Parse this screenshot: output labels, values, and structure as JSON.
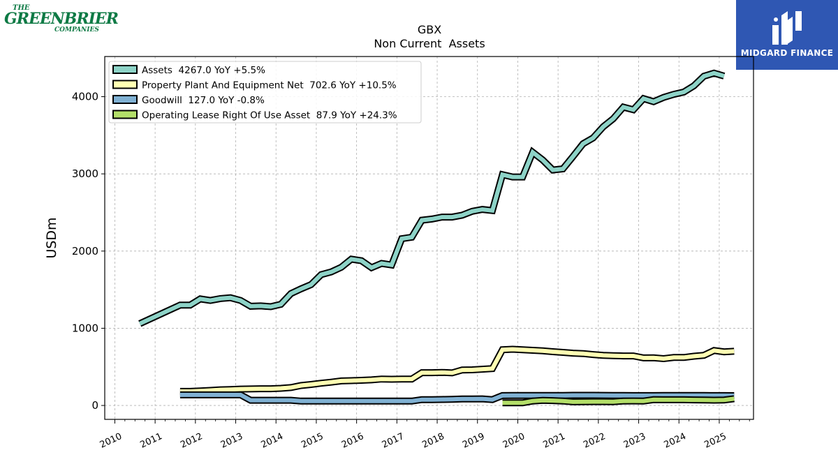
{
  "brand": {
    "company_logo": {
      "line1": "THE",
      "line2": "GREENBRIER",
      "line3": "COMPANIES",
      "color": "#0e7a45"
    },
    "publisher_logo": {
      "text": "MIDGARD FINANCE",
      "background": "#2f57b3",
      "mark": "double-i-icon"
    }
  },
  "chart_data": {
    "type": "line",
    "title": "GBX",
    "subtitle": "Non Current  Assets",
    "xlabel": "",
    "ylabel": "USDm",
    "xlim": [
      2009.75,
      2025.85
    ],
    "ylim": [
      -180,
      4520
    ],
    "xticks": [
      "2010",
      "2011",
      "2012",
      "2013",
      "2014",
      "2015",
      "2016",
      "2017",
      "2018",
      "2019",
      "2020",
      "2021",
      "2022",
      "2023",
      "2024",
      "2025"
    ],
    "yticks": [
      0,
      1000,
      2000,
      3000,
      4000
    ],
    "grid": true,
    "legend_position": "top-left",
    "series": [
      {
        "name": "Assets",
        "legend": "Assets  4267.0 YoY +5.5%",
        "color": "#8dd3c7",
        "points": [
          [
            2010.62,
            1060
          ],
          [
            2011.62,
            1300
          ],
          [
            2011.87,
            1300
          ],
          [
            2012.12,
            1380
          ],
          [
            2012.37,
            1360
          ],
          [
            2012.62,
            1385
          ],
          [
            2012.87,
            1395
          ],
          [
            2013.12,
            1360
          ],
          [
            2013.37,
            1285
          ],
          [
            2013.62,
            1290
          ],
          [
            2013.87,
            1280
          ],
          [
            2014.12,
            1310
          ],
          [
            2014.37,
            1450
          ],
          [
            2014.62,
            1510
          ],
          [
            2014.87,
            1565
          ],
          [
            2015.12,
            1695
          ],
          [
            2015.37,
            1730
          ],
          [
            2015.62,
            1790
          ],
          [
            2015.87,
            1895
          ],
          [
            2016.12,
            1875
          ],
          [
            2016.37,
            1785
          ],
          [
            2016.62,
            1840
          ],
          [
            2016.87,
            1820
          ],
          [
            2017.12,
            2160
          ],
          [
            2017.37,
            2180
          ],
          [
            2017.62,
            2400
          ],
          [
            2017.87,
            2415
          ],
          [
            2018.12,
            2440
          ],
          [
            2018.37,
            2440
          ],
          [
            2018.62,
            2465
          ],
          [
            2018.87,
            2515
          ],
          [
            2019.12,
            2540
          ],
          [
            2019.37,
            2525
          ],
          [
            2019.62,
            2990
          ],
          [
            2019.87,
            2960
          ],
          [
            2020.12,
            2960
          ],
          [
            2020.37,
            3280
          ],
          [
            2020.62,
            3180
          ],
          [
            2020.87,
            3050
          ],
          [
            2021.12,
            3065
          ],
          [
            2021.37,
            3225
          ],
          [
            2021.62,
            3390
          ],
          [
            2021.87,
            3465
          ],
          [
            2022.12,
            3610
          ],
          [
            2022.37,
            3715
          ],
          [
            2022.62,
            3865
          ],
          [
            2022.87,
            3830
          ],
          [
            2023.12,
            3975
          ],
          [
            2023.37,
            3935
          ],
          [
            2023.62,
            3990
          ],
          [
            2023.87,
            4030
          ],
          [
            2024.12,
            4060
          ],
          [
            2024.37,
            4140
          ],
          [
            2024.62,
            4265
          ],
          [
            2024.87,
            4305
          ],
          [
            2025.12,
            4267
          ]
        ]
      },
      {
        "name": "Property Plant And Equipment Net",
        "legend": "Property Plant And Equipment Net  702.6 YoY +10.5%",
        "color": "#ffffb3",
        "points": [
          [
            2011.62,
            182
          ],
          [
            2011.87,
            182
          ],
          [
            2012.12,
            188
          ],
          [
            2012.37,
            195
          ],
          [
            2012.62,
            203
          ],
          [
            2012.87,
            207
          ],
          [
            2013.12,
            212
          ],
          [
            2013.37,
            214
          ],
          [
            2013.62,
            217
          ],
          [
            2013.87,
            217
          ],
          [
            2014.12,
            222
          ],
          [
            2014.37,
            232
          ],
          [
            2014.62,
            258
          ],
          [
            2014.87,
            272
          ],
          [
            2015.12,
            288
          ],
          [
            2015.37,
            302
          ],
          [
            2015.62,
            318
          ],
          [
            2015.87,
            322
          ],
          [
            2016.12,
            326
          ],
          [
            2016.37,
            332
          ],
          [
            2016.62,
            342
          ],
          [
            2016.87,
            340
          ],
          [
            2017.12,
            342
          ],
          [
            2017.37,
            342
          ],
          [
            2017.62,
            425
          ],
          [
            2017.87,
            425
          ],
          [
            2018.12,
            428
          ],
          [
            2018.37,
            422
          ],
          [
            2018.62,
            460
          ],
          [
            2018.87,
            462
          ],
          [
            2019.12,
            470
          ],
          [
            2019.37,
            478
          ],
          [
            2019.62,
            722
          ],
          [
            2019.87,
            728
          ],
          [
            2020.12,
            722
          ],
          [
            2020.37,
            715
          ],
          [
            2020.62,
            708
          ],
          [
            2020.87,
            697
          ],
          [
            2021.12,
            688
          ],
          [
            2021.37,
            678
          ],
          [
            2021.62,
            672
          ],
          [
            2021.87,
            660
          ],
          [
            2022.12,
            650
          ],
          [
            2022.37,
            645
          ],
          [
            2022.62,
            642
          ],
          [
            2022.87,
            642
          ],
          [
            2023.12,
            616
          ],
          [
            2023.37,
            617
          ],
          [
            2023.62,
            606
          ],
          [
            2023.87,
            622
          ],
          [
            2024.12,
            622
          ],
          [
            2024.37,
            638
          ],
          [
            2024.62,
            650
          ],
          [
            2024.87,
            712
          ],
          [
            2025.12,
            695
          ],
          [
            2025.37,
            702.6
          ]
        ]
      },
      {
        "name": "Goodwill",
        "legend": "Goodwill  127.0 YoY -0.8%",
        "color": "#80b1d3",
        "points": [
          [
            2011.62,
            137
          ],
          [
            2011.87,
            137
          ],
          [
            2012.12,
            137
          ],
          [
            2012.37,
            137
          ],
          [
            2012.62,
            137
          ],
          [
            2012.87,
            137
          ],
          [
            2013.12,
            137
          ],
          [
            2013.37,
            68
          ],
          [
            2013.62,
            68
          ],
          [
            2013.87,
            68
          ],
          [
            2014.12,
            68
          ],
          [
            2014.37,
            68
          ],
          [
            2014.62,
            57
          ],
          [
            2014.87,
            57
          ],
          [
            2015.12,
            57
          ],
          [
            2015.37,
            57
          ],
          [
            2015.62,
            57
          ],
          [
            2015.87,
            57
          ],
          [
            2016.12,
            57
          ],
          [
            2016.37,
            57
          ],
          [
            2016.62,
            57
          ],
          [
            2016.87,
            57
          ],
          [
            2017.12,
            57
          ],
          [
            2017.37,
            57
          ],
          [
            2017.62,
            76
          ],
          [
            2017.87,
            76
          ],
          [
            2018.12,
            78
          ],
          [
            2018.37,
            80
          ],
          [
            2018.62,
            84
          ],
          [
            2018.87,
            84
          ],
          [
            2019.12,
            86
          ],
          [
            2019.37,
            76
          ],
          [
            2019.62,
            128
          ],
          [
            2019.87,
            130
          ],
          [
            2020.12,
            130
          ],
          [
            2020.37,
            130
          ],
          [
            2020.62,
            130
          ],
          [
            2020.87,
            130
          ],
          [
            2021.12,
            130
          ],
          [
            2021.37,
            132
          ],
          [
            2021.62,
            132
          ],
          [
            2021.87,
            132
          ],
          [
            2022.12,
            131
          ],
          [
            2022.37,
            130
          ],
          [
            2022.62,
            129
          ],
          [
            2022.87,
            128
          ],
          [
            2023.12,
            128
          ],
          [
            2023.37,
            128
          ],
          [
            2023.62,
            129
          ],
          [
            2023.87,
            129
          ],
          [
            2024.12,
            129
          ],
          [
            2024.37,
            129
          ],
          [
            2024.62,
            129
          ],
          [
            2024.87,
            128
          ],
          [
            2025.12,
            128
          ],
          [
            2025.37,
            127
          ]
        ]
      },
      {
        "name": "Operating Lease Right Of Use Asset",
        "legend": "Operating Lease Right Of Use Asset  87.9 YoY +24.3%",
        "color": "#b3de69",
        "points": [
          [
            2019.62,
            35
          ],
          [
            2019.87,
            35
          ],
          [
            2020.12,
            34
          ],
          [
            2020.37,
            58
          ],
          [
            2020.62,
            66
          ],
          [
            2020.87,
            63
          ],
          [
            2021.12,
            58
          ],
          [
            2021.37,
            47
          ],
          [
            2021.62,
            48
          ],
          [
            2021.87,
            50
          ],
          [
            2022.12,
            50
          ],
          [
            2022.37,
            48
          ],
          [
            2022.62,
            58
          ],
          [
            2022.87,
            59
          ],
          [
            2023.12,
            58
          ],
          [
            2023.37,
            75
          ],
          [
            2023.62,
            74
          ],
          [
            2023.87,
            74
          ],
          [
            2024.12,
            74
          ],
          [
            2024.37,
            72
          ],
          [
            2024.62,
            70
          ],
          [
            2024.87,
            69
          ],
          [
            2025.12,
            71
          ],
          [
            2025.37,
            87.9
          ]
        ]
      }
    ]
  }
}
